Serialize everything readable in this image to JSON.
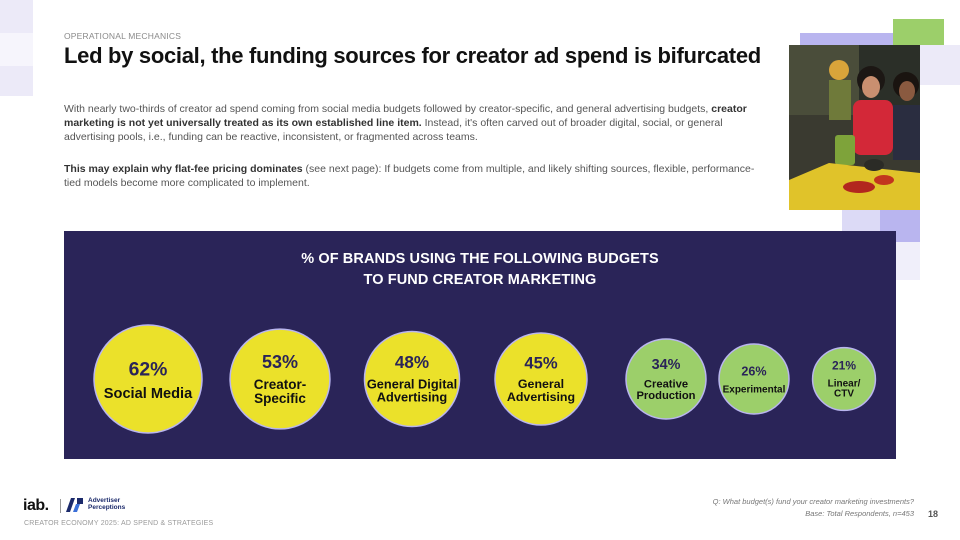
{
  "header": {
    "eyebrow": "OPERATIONAL MECHANICS",
    "title": "Led by social, the funding sources for creator ad spend is bifurcated"
  },
  "body": {
    "p1_a": "With nearly two-thirds of creator ad spend coming from social media budgets followed by creator-specific, and general advertising budgets, ",
    "p1_bold": "creator marketing is not yet universally treated as its own established line item.",
    "p1_b": " Instead, it's often carved out of broader digital, social, or general advertising pools, i.e., funding can be reactive, inconsistent, or fragmented across teams.",
    "p2_bold": "This may explain why flat-fee pricing dominates",
    "p2_rest": " (see next page): If budgets come from multiple, and likely shifting sources, flexible, performance-tied models become more complicated to implement."
  },
  "chart_data": {
    "type": "bubble",
    "title_line1": "% OF BRANDS USING THE FOLLOWING BUDGETS",
    "title_line2": "TO FUND CREATOR MARKETING",
    "unit": "%",
    "categories": [
      {
        "label": "Social Media",
        "lines": [
          "Social Media"
        ],
        "value": 62,
        "color": "#ebe12a"
      },
      {
        "label": "Creator-Specific",
        "lines": [
          "Creator-",
          "Specific"
        ],
        "value": 53,
        "color": "#ebe12a"
      },
      {
        "label": "General Digital Advertising",
        "lines": [
          "General Digital",
          "Advertising"
        ],
        "value": 48,
        "color": "#ebe12a"
      },
      {
        "label": "General Advertising",
        "lines": [
          "General",
          "Advertising"
        ],
        "value": 45,
        "color": "#ebe12a"
      },
      {
        "label": "Creative Production",
        "lines": [
          "Creative",
          "Production"
        ],
        "value": 34,
        "color": "#9ccf6a"
      },
      {
        "label": "Experimental",
        "lines": [
          "Experimental"
        ],
        "value": 26,
        "color": "#9ccf6a"
      },
      {
        "label": "Linear/CTV",
        "lines": [
          "Linear/",
          "CTV"
        ],
        "value": 21,
        "color": "#9ccf6a"
      }
    ]
  },
  "footer": {
    "question": "Q: What budget(s) fund your creator marketing investments?",
    "base": "Base: Total Respondents, n=453",
    "page_number": "18",
    "report_name": "CREATOR ECONOMY 2025: AD SPEND & STRATEGIES",
    "logo_iab": "iab.",
    "logo_ap_line1": "Advertiser",
    "logo_ap_line2": "Perceptions"
  },
  "colors": {
    "panel": "#2a2458",
    "accent_yellow": "#ebe12a",
    "accent_green": "#9ccf6a",
    "accent_lavender": "#b9b5ef"
  }
}
